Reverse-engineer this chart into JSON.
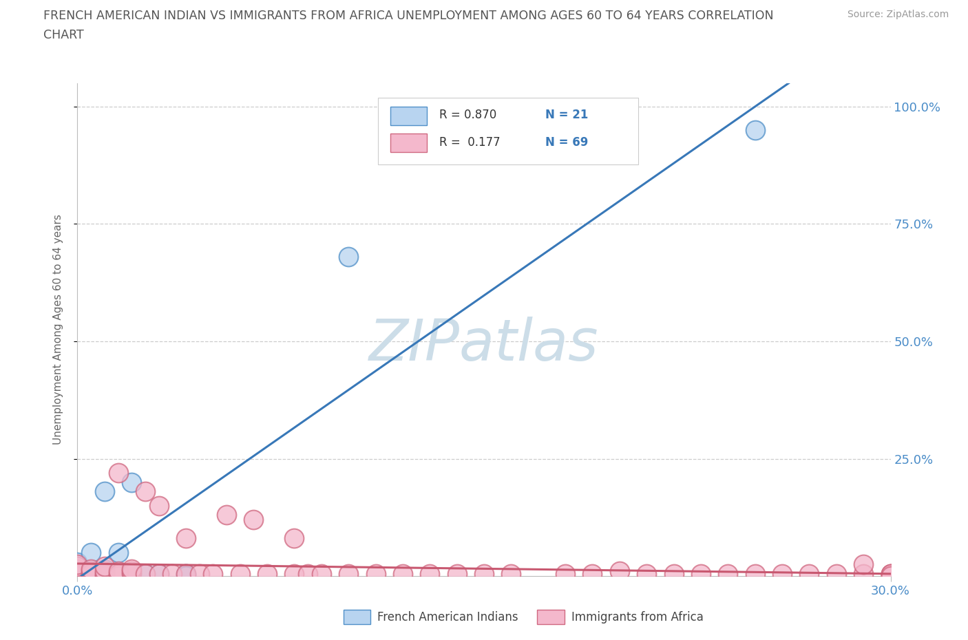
{
  "title_line1": "FRENCH AMERICAN INDIAN VS IMMIGRANTS FROM AFRICA UNEMPLOYMENT AMONG AGES 60 TO 64 YEARS CORRELATION",
  "title_line2": "CHART",
  "source": "Source: ZipAtlas.com",
  "ylabel": "Unemployment Among Ages 60 to 64 years",
  "xmin": 0.0,
  "xmax": 0.3,
  "ymin": 0.0,
  "ymax": 1.05,
  "ytick_values": [
    0.25,
    0.5,
    0.75,
    1.0
  ],
  "ytick_labels": [
    "25.0%",
    "50.0%",
    "75.0%",
    "100.0%"
  ],
  "legend_R_blue": "0.870",
  "legend_N_blue": "21",
  "legend_R_pink": "0.177",
  "legend_N_pink": "69",
  "blue_fill": "#b8d4f0",
  "pink_fill": "#f4b8cc",
  "blue_edge": "#5090c8",
  "pink_edge": "#d06880",
  "blue_line": "#3878b8",
  "pink_line": "#c85870",
  "watermark_color": "#ccdde8",
  "background_color": "#ffffff",
  "blue_scatter_x": [
    0.0,
    0.0,
    0.0,
    0.0,
    0.0,
    0.0,
    0.005,
    0.005,
    0.01,
    0.01,
    0.01,
    0.01,
    0.015,
    0.02,
    0.02,
    0.025,
    0.03,
    0.04,
    0.04,
    0.1,
    0.25
  ],
  "blue_scatter_y": [
    0.0,
    0.005,
    0.01,
    0.015,
    0.02,
    0.03,
    0.01,
    0.05,
    0.005,
    0.01,
    0.015,
    0.18,
    0.05,
    0.005,
    0.2,
    0.005,
    0.005,
    0.005,
    0.0,
    0.68,
    0.95
  ],
  "pink_scatter_x": [
    0.0,
    0.0,
    0.0,
    0.0,
    0.0,
    0.0,
    0.0,
    0.0,
    0.0,
    0.0,
    0.0,
    0.005,
    0.005,
    0.005,
    0.005,
    0.005,
    0.005,
    0.01,
    0.01,
    0.01,
    0.01,
    0.015,
    0.015,
    0.015,
    0.015,
    0.02,
    0.02,
    0.02,
    0.025,
    0.025,
    0.03,
    0.03,
    0.035,
    0.04,
    0.04,
    0.045,
    0.05,
    0.055,
    0.06,
    0.065,
    0.07,
    0.08,
    0.08,
    0.085,
    0.09,
    0.1,
    0.11,
    0.12,
    0.13,
    0.14,
    0.15,
    0.16,
    0.18,
    0.19,
    0.2,
    0.21,
    0.22,
    0.23,
    0.24,
    0.25,
    0.26,
    0.27,
    0.28,
    0.29,
    0.29,
    0.3,
    0.3,
    0.3,
    0.3
  ],
  "pink_scatter_y": [
    0.0,
    0.0,
    0.0,
    0.005,
    0.005,
    0.005,
    0.01,
    0.01,
    0.015,
    0.02,
    0.025,
    0.0,
    0.0,
    0.005,
    0.005,
    0.01,
    0.015,
    0.0,
    0.005,
    0.01,
    0.02,
    0.0,
    0.005,
    0.01,
    0.22,
    0.005,
    0.01,
    0.015,
    0.005,
    0.18,
    0.005,
    0.15,
    0.005,
    0.005,
    0.08,
    0.005,
    0.005,
    0.13,
    0.005,
    0.12,
    0.005,
    0.005,
    0.08,
    0.005,
    0.005,
    0.005,
    0.005,
    0.005,
    0.005,
    0.005,
    0.005,
    0.005,
    0.005,
    0.005,
    0.01,
    0.005,
    0.005,
    0.005,
    0.005,
    0.005,
    0.005,
    0.005,
    0.005,
    0.005,
    0.025,
    0.005,
    0.005,
    0.005,
    0.0
  ]
}
